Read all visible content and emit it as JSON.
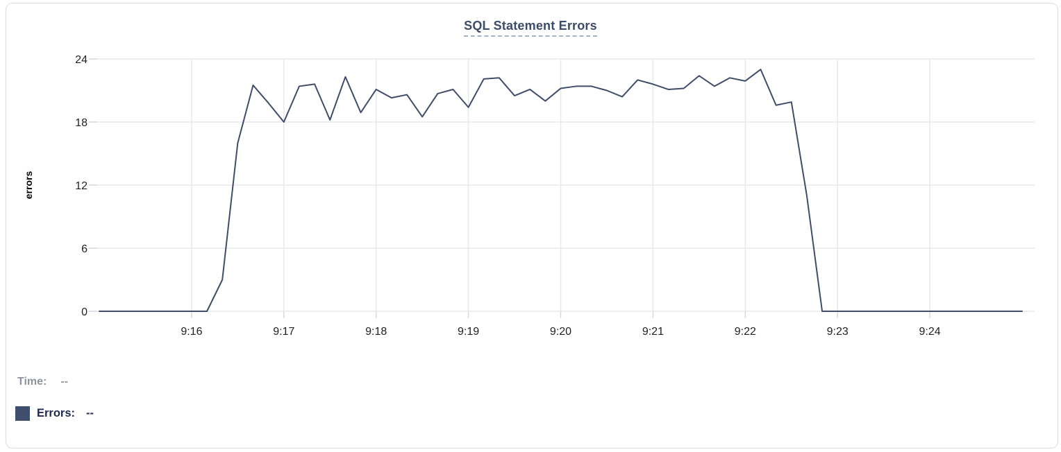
{
  "legend": {
    "time_label": "Time:",
    "time_value": "--",
    "errors_label": "Errors:",
    "errors_value": "--",
    "swatch_color": "#3f4e6c"
  },
  "colors": {
    "series_line": "#3e4c6a",
    "title_text": "#3c4b69",
    "title_underline": "#a4b2c8",
    "gridline": "#e8e9eb",
    "axis_tick_mark": "#d7d9dd",
    "tick_text": "#202124",
    "time_label_gray": "#8d929b",
    "errors_label_navy": "#1e2a4c",
    "card_border": "#d9dbdf"
  },
  "chart_data": {
    "type": "line",
    "title": "SQL Statement Errors",
    "xlabel": "",
    "ylabel": "errors",
    "grid": true,
    "legend_position": "bottom-left",
    "ylim": [
      0,
      24
    ],
    "y_ticks": [
      0,
      6,
      12,
      18,
      24
    ],
    "x_domain_seconds": [
      0,
      600
    ],
    "x_start_time": "9:15:00",
    "x_end_time": "9:25:00",
    "sample_interval_seconds": 10,
    "x_ticks": [
      {
        "label": "9:16",
        "t": 60
      },
      {
        "label": "9:17",
        "t": 120
      },
      {
        "label": "9:18",
        "t": 180
      },
      {
        "label": "9:19",
        "t": 240
      },
      {
        "label": "9:20",
        "t": 300
      },
      {
        "label": "9:21",
        "t": 360
      },
      {
        "label": "9:22",
        "t": 420
      },
      {
        "label": "9:23",
        "t": 480
      },
      {
        "label": "9:24",
        "t": 540
      }
    ],
    "times": [
      "9:15:00",
      "9:15:10",
      "9:15:20",
      "9:15:30",
      "9:15:40",
      "9:15:50",
      "9:16:00",
      "9:16:10",
      "9:16:20",
      "9:16:30",
      "9:16:40",
      "9:16:50",
      "9:17:00",
      "9:17:10",
      "9:17:20",
      "9:17:30",
      "9:17:40",
      "9:17:50",
      "9:18:00",
      "9:18:10",
      "9:18:20",
      "9:18:30",
      "9:18:40",
      "9:18:50",
      "9:19:00",
      "9:19:10",
      "9:19:20",
      "9:19:30",
      "9:19:40",
      "9:19:50",
      "9:20:00",
      "9:20:10",
      "9:20:20",
      "9:20:30",
      "9:20:40",
      "9:20:50",
      "9:21:00",
      "9:21:10",
      "9:21:20",
      "9:21:30",
      "9:21:40",
      "9:21:50",
      "9:22:00",
      "9:22:10",
      "9:22:20",
      "9:22:30",
      "9:22:40",
      "9:22:50",
      "9:23:00",
      "9:23:10",
      "9:23:20",
      "9:23:30",
      "9:23:40",
      "9:23:50",
      "9:24:00",
      "9:24:10",
      "9:24:20",
      "9:24:30",
      "9:24:40",
      "9:24:50",
      "9:25:00"
    ],
    "series": [
      {
        "name": "Errors",
        "color": "#3e4c6a",
        "values": [
          0,
          0,
          0,
          0,
          0,
          0,
          0,
          0,
          3,
          16,
          21.5,
          19.8,
          18,
          21.4,
          21.6,
          18.2,
          22.3,
          18.9,
          21.1,
          20.3,
          20.6,
          18.5,
          20.7,
          21.1,
          19.4,
          22.1,
          22.2,
          20.5,
          21.1,
          20,
          21.2,
          21.4,
          21.4,
          21,
          20.4,
          22,
          21.6,
          21.1,
          21.2,
          22.4,
          21.4,
          22.2,
          21.9,
          23,
          19.6,
          19.9,
          11,
          0,
          0,
          0,
          0,
          0,
          0,
          0,
          0,
          0,
          0,
          0,
          0,
          0,
          0
        ]
      }
    ]
  }
}
